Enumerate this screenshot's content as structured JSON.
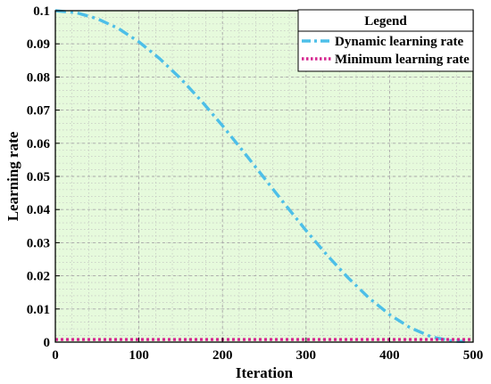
{
  "chart_data": {
    "type": "line",
    "xlabel": "Iteration",
    "ylabel": "Learning rate",
    "xlim": [
      0,
      500
    ],
    "ylim": [
      0,
      0.1
    ],
    "x_ticks": [
      0,
      100,
      200,
      300,
      400,
      500
    ],
    "y_ticks": [
      0,
      0.01,
      0.02,
      0.03,
      0.04,
      0.05,
      0.06,
      0.07,
      0.08,
      0.09,
      0.1
    ],
    "x_tick_labels": [
      "0",
      "100",
      "200",
      "300",
      "400",
      "500"
    ],
    "y_tick_labels": [
      "0",
      "0.01",
      "0.02",
      "0.03",
      "0.04",
      "0.05",
      "0.06",
      "0.07",
      "0.08",
      "0.09",
      "0.1"
    ],
    "grid": true,
    "plot_background": "#e6fadc",
    "legend": {
      "title": "Legend",
      "placement": "top-right"
    },
    "series": [
      {
        "name": "Dynamic learning rate",
        "color": "#4dbfe8",
        "style": "dash-dot",
        "x": [
          0,
          25,
          50,
          75,
          100,
          125,
          150,
          175,
          200,
          225,
          250,
          275,
          300,
          325,
          350,
          375,
          400,
          425,
          450,
          475,
          490
        ],
        "y": [
          0.1,
          0.0994,
          0.0976,
          0.0947,
          0.0906,
          0.0855,
          0.0795,
          0.0727,
          0.0653,
          0.0575,
          0.0495,
          0.0415,
          0.0337,
          0.0263,
          0.0195,
          0.0134,
          0.0083,
          0.0043,
          0.0016,
          0.0003,
          0.0002
        ]
      },
      {
        "name": "Minimum learning rate",
        "color": "#d6268f",
        "style": "dotted",
        "x": [
          0,
          500
        ],
        "y": [
          0.0008,
          0.0008
        ]
      }
    ]
  }
}
